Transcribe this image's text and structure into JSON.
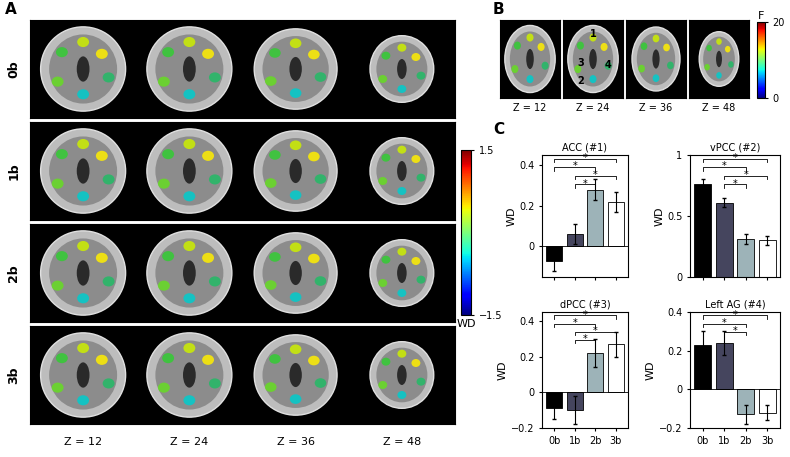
{
  "panels": {
    "A": {
      "label": "A",
      "rows": [
        "0b",
        "1b",
        "2b",
        "3b"
      ],
      "z_labels": [
        "Z = 12",
        "Z = 24",
        "Z = 36",
        "Z = 48"
      ],
      "colorbar": {
        "label": "WD",
        "range": [
          -1.5,
          1.5
        ],
        "ticks": [
          {
            "value": -1.5,
            "label": "−1.5"
          },
          1.5
        ]
      }
    },
    "B": {
      "label": "B",
      "z_labels": [
        "Z = 12",
        "Z = 24",
        "Z = 36",
        "Z = 48"
      ],
      "region_labels": [
        "1",
        "2",
        "3",
        "4"
      ],
      "colorbar": {
        "label": "F",
        "range": [
          0,
          20
        ],
        "ticks": [
          0,
          20
        ]
      }
    },
    "C": {
      "label": "C"
    }
  },
  "chart_data": [
    {
      "type": "bar",
      "title": "ACC (#1)",
      "categories": [
        "0b",
        "1b",
        "2b",
        "3b"
      ],
      "values": [
        -0.07,
        0.06,
        0.28,
        0.22
      ],
      "errors": [
        0.05,
        0.05,
        0.05,
        0.05
      ],
      "colors": [
        "#000000",
        "#45455e",
        "#9db3b8",
        "#ffffff"
      ],
      "ylabel": "WD",
      "ylim": [
        -0.15,
        0.45
      ],
      "yticks": [
        0,
        0.2,
        0.4
      ],
      "tick_labels": "y",
      "significance": {
        "label": "*",
        "pairs": [
          [
            "0b",
            "3b"
          ],
          [
            "0b",
            "2b"
          ],
          [
            "1b",
            "3b"
          ],
          [
            "1b",
            "2b"
          ]
        ]
      }
    },
    {
      "type": "bar",
      "title": "vPCC (#2)",
      "categories": [
        "0b",
        "1b",
        "2b",
        "3b"
      ],
      "values": [
        0.76,
        0.61,
        0.31,
        0.3
      ],
      "errors": [
        0.04,
        0.04,
        0.04,
        0.04
      ],
      "colors": [
        "#000000",
        "#45455e",
        "#9db3b8",
        "#ffffff"
      ],
      "ylabel": "WD",
      "ylim": [
        0,
        1
      ],
      "yticks": [
        0,
        0.5,
        1
      ],
      "tick_labels": "y",
      "significance": {
        "label": "*",
        "pairs": [
          [
            "0b",
            "3b"
          ],
          [
            "0b",
            "2b"
          ],
          [
            "1b",
            "3b"
          ],
          [
            "1b",
            "2b"
          ]
        ]
      }
    },
    {
      "type": "bar",
      "title": "dPCC (#3)",
      "categories": [
        "0b",
        "1b",
        "2b",
        "3b"
      ],
      "values": [
        -0.09,
        -0.1,
        0.22,
        0.27
      ],
      "errors": [
        0.06,
        0.08,
        0.08,
        0.07
      ],
      "colors": [
        "#000000",
        "#45455e",
        "#9db3b8",
        "#ffffff"
      ],
      "ylabel": "WD",
      "ylim": [
        -0.2,
        0.45
      ],
      "yticks": [
        {
          "value": -0.2,
          "label": "−0.2"
        },
        0,
        0.2,
        0.4
      ],
      "significance": {
        "label": "*",
        "pairs": [
          [
            "0b",
            "3b"
          ],
          [
            "0b",
            "2b"
          ],
          [
            "1b",
            "3b"
          ],
          [
            "1b",
            "2b"
          ]
        ]
      }
    },
    {
      "type": "bar",
      "title": "Left AG (#4)",
      "categories": [
        "0b",
        "1b",
        "2b",
        "3b"
      ],
      "values": [
        0.23,
        0.24,
        -0.13,
        -0.12
      ],
      "errors": [
        0.07,
        0.06,
        0.05,
        0.04
      ],
      "colors": [
        "#000000",
        "#45455e",
        "#9db3b8",
        "#ffffff"
      ],
      "ylabel": "WD",
      "ylim": [
        -0.2,
        0.4
      ],
      "yticks": [
        {
          "value": -0.2,
          "label": "−0.2"
        },
        0,
        0.2,
        0.4
      ],
      "significance": {
        "label": "*",
        "pairs": [
          [
            "0b",
            "3b"
          ],
          [
            "0b",
            "2b"
          ],
          [
            "1b",
            "2b"
          ]
        ]
      }
    }
  ]
}
